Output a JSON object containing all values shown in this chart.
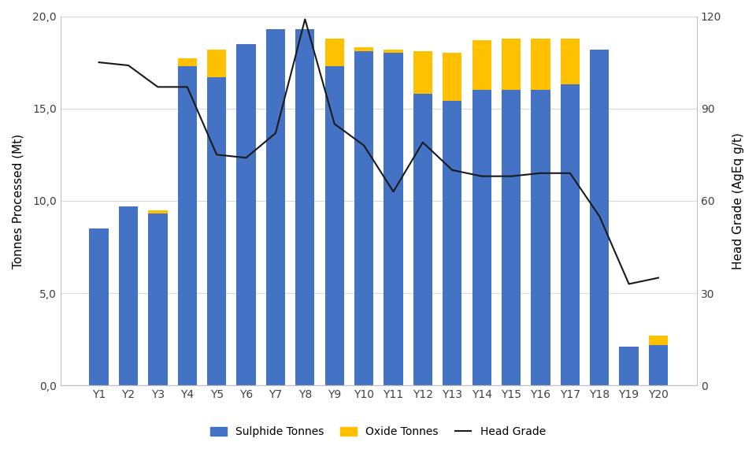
{
  "categories": [
    "Y1",
    "Y2",
    "Y3",
    "Y4",
    "Y5",
    "Y6",
    "Y7",
    "Y8",
    "Y9",
    "Y10",
    "Y11",
    "Y12",
    "Y13",
    "Y14",
    "Y15",
    "Y16",
    "Y17",
    "Y18",
    "Y19",
    "Y20"
  ],
  "sulphide": [
    8.5,
    9.7,
    9.3,
    17.3,
    16.7,
    18.5,
    19.3,
    19.3,
    17.3,
    18.1,
    18.0,
    15.8,
    15.4,
    16.0,
    16.0,
    16.0,
    16.3,
    18.2,
    2.1,
    2.2
  ],
  "oxide": [
    0.0,
    0.0,
    0.2,
    0.4,
    1.5,
    0.0,
    0.0,
    0.0,
    1.5,
    0.2,
    0.2,
    2.3,
    2.6,
    2.7,
    2.8,
    2.8,
    2.5,
    0.0,
    0.0,
    0.5
  ],
  "head_grade": [
    105,
    104,
    97,
    97,
    75,
    74,
    82,
    119,
    85,
    78,
    63,
    79,
    70,
    68,
    68,
    69,
    69,
    55,
    33,
    35
  ],
  "sulphide_color": "#4472C4",
  "oxide_color": "#FFC000",
  "line_color": "#1a1a1a",
  "ylabel_left": "Tonnes Processed (Mt)",
  "ylabel_right": "Head Grade (AgEq g/t)",
  "ylim_left": [
    0,
    20
  ],
  "ylim_right": [
    0,
    120
  ],
  "yticks_left": [
    0.0,
    5.0,
    10.0,
    15.0,
    20.0
  ],
  "yticks_right": [
    0,
    30,
    60,
    90,
    120
  ],
  "ytick_labels_left": [
    "0,0",
    "5,0",
    "10,0",
    "15,0",
    "20,0"
  ],
  "background_color": "#ffffff",
  "legend_labels": [
    "Sulphide Tonnes",
    "Oxide Tonnes",
    "Head Grade"
  ],
  "grid_color": "#D9D9D9",
  "spine_color": "#BFBFBF"
}
